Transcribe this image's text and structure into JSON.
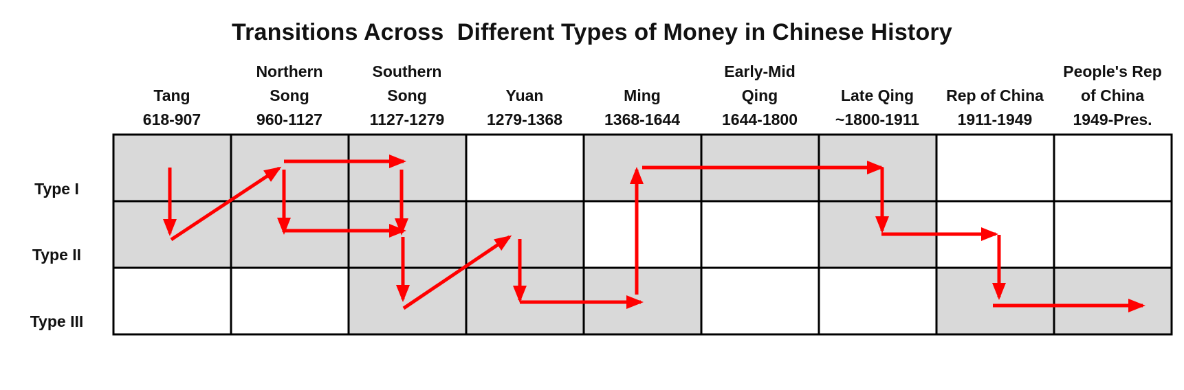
{
  "title": "Transitions Across  Different Types of Money in Chinese History",
  "columns": [
    {
      "name": [
        "Tang"
      ],
      "years": "618-907"
    },
    {
      "name": [
        "Northern",
        "Song"
      ],
      "years": "960-1127"
    },
    {
      "name": [
        "Southern",
        "Song"
      ],
      "years": "1127-1279"
    },
    {
      "name": [
        "Yuan"
      ],
      "years": "1279-1368"
    },
    {
      "name": [
        "Ming"
      ],
      "years": "1368-1644"
    },
    {
      "name": [
        "Early-Mid",
        "Qing"
      ],
      "years": "1644-1800"
    },
    {
      "name": [
        "Late Qing"
      ],
      "years": "~1800-1911"
    },
    {
      "name": [
        "Rep of China"
      ],
      "years": "1911-1949"
    },
    {
      "name": [
        "People's Rep",
        "of China"
      ],
      "years": "1949-Pres."
    }
  ],
  "rows": [
    "Type I",
    "Type II",
    "Type III"
  ],
  "shaded_cells": [
    [
      0,
      0
    ],
    [
      0,
      1
    ],
    [
      1,
      0
    ],
    [
      1,
      1
    ],
    [
      2,
      0
    ],
    [
      2,
      1
    ],
    [
      2,
      2
    ],
    [
      3,
      1
    ],
    [
      3,
      2
    ],
    [
      4,
      0
    ],
    [
      4,
      2
    ],
    [
      5,
      0
    ],
    [
      6,
      0
    ],
    [
      6,
      1
    ],
    [
      7,
      2
    ],
    [
      8,
      2
    ]
  ],
  "transitions": [
    {
      "period": 0,
      "from": "Type I",
      "to": "Type II"
    },
    {
      "from_period": 0,
      "to_period": 1,
      "from": "Type II",
      "to": "Type I"
    },
    {
      "period": 1,
      "from": "Type I",
      "to": "Type II"
    },
    {
      "from_period": 1,
      "to_period": 2,
      "type": "Type I"
    },
    {
      "from_period": 1,
      "to_period": 2,
      "type": "Type II"
    },
    {
      "period": 2,
      "from": "Type I",
      "to": "Type II"
    },
    {
      "period": 2,
      "from": "Type II",
      "to": "Type III"
    },
    {
      "from_period": 2,
      "to_period": 3,
      "from": "Type III",
      "to": "Type II"
    },
    {
      "period": 3,
      "from": "Type II",
      "to": "Type III"
    },
    {
      "from_period": 3,
      "to_period": 4,
      "type": "Type III"
    },
    {
      "period": 4,
      "from": "Type III",
      "to": "Type I"
    },
    {
      "from_period": 4,
      "to_period": 6,
      "type": "Type I"
    },
    {
      "period": 6,
      "from": "Type I",
      "to": "Type II"
    },
    {
      "from_period": 6,
      "to_period": 7,
      "type": "Type II"
    },
    {
      "period": 7,
      "from": "Type II",
      "to": "Type III"
    },
    {
      "from_period": 7,
      "to_period": 8,
      "type": "Type III"
    }
  ],
  "colors": {
    "shaded": "#d9d9d9",
    "arrow": "#ff0000",
    "grid": "#000000"
  }
}
